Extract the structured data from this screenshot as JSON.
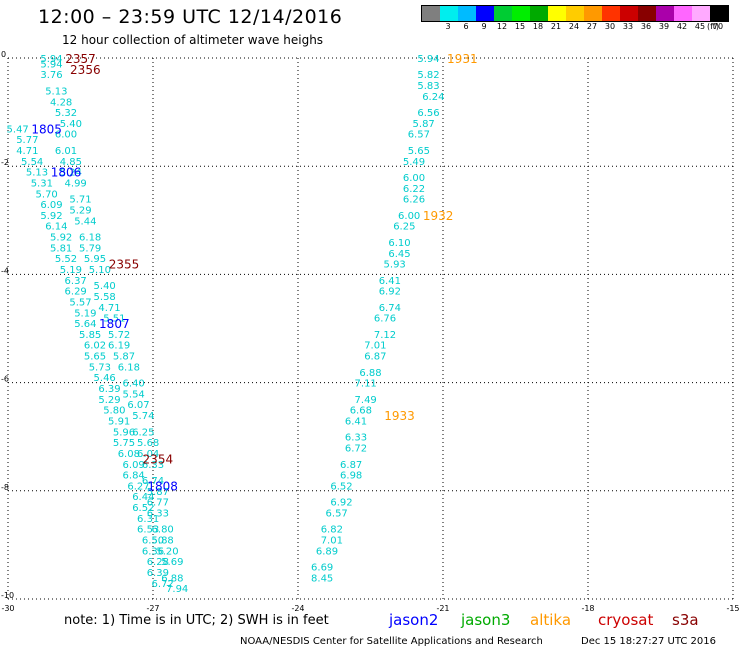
{
  "header": {
    "title": "12:00 – 23:59 UTC 12/14/2016",
    "subtitle": "12 hour collection of altimeter wave heighs"
  },
  "colorbar": {
    "labels": [
      "3",
      "6",
      "9",
      "12",
      "15",
      "18",
      "21",
      "24",
      "27",
      "30",
      "33",
      "36",
      "39",
      "42",
      "45",
      "70"
    ],
    "colors": [
      "#7f7f7f",
      "#00eeee",
      "#00bbff",
      "#0000ff",
      "#00cc33",
      "#00ee00",
      "#00aa00",
      "#ffff00",
      "#ffcc00",
      "#ff9900",
      "#ff3300",
      "#cc0000",
      "#880000",
      "#aa00aa",
      "#ff66ff",
      "#ffaaff",
      "#000000"
    ],
    "unit": "(ft)"
  },
  "footer": {
    "note": "note:  1) Time is in UTC;  2) SWH is in feet",
    "satellites": [
      {
        "name": "jason2",
        "color": "#0000ff"
      },
      {
        "name": "jason3",
        "color": "#00aa00"
      },
      {
        "name": "altika",
        "color": "#ff9900"
      },
      {
        "name": "cryosat",
        "color": "#cc0000"
      },
      {
        "name": "s3a",
        "color": "#880000"
      }
    ],
    "center": "NOAA/NESDIS Center for Satellite Applications and Research",
    "date": "Dec 15 18:27:27 UTC 2016"
  },
  "chart_data": {
    "type": "scatter",
    "xlim": [
      -30,
      -15
    ],
    "ylim": [
      -10,
      0
    ],
    "xticks": [
      "-30",
      "-27",
      "-24",
      "-21",
      "-18",
      "-15"
    ],
    "yticks": [
      "0",
      "-2",
      "-4",
      "-6",
      "-8",
      "-10"
    ],
    "grid": "dotted",
    "swh_color": "#00cccc",
    "tracks": [
      {
        "name": "track-a",
        "points": [
          [
            -29.1,
            -0.1,
            "5.94"
          ],
          [
            -29.1,
            -0.3,
            "3.76"
          ],
          [
            -29.0,
            -0.6,
            "5.13"
          ],
          [
            -28.9,
            -0.8,
            "4.28"
          ],
          [
            -28.8,
            -1.0,
            "5.32"
          ],
          [
            -28.7,
            -1.2,
            "5.40"
          ],
          [
            -28.8,
            -1.4,
            "6.00"
          ],
          [
            -28.8,
            -1.7,
            "6.01"
          ],
          [
            -28.7,
            -1.9,
            "4.85"
          ],
          [
            -28.7,
            -2.1,
            "5.24"
          ],
          [
            -28.6,
            -2.3,
            "4.99"
          ],
          [
            -28.5,
            -2.6,
            "5.71"
          ],
          [
            -28.5,
            -2.8,
            "5.29"
          ],
          [
            -28.4,
            -3.0,
            "5.44"
          ],
          [
            -28.3,
            -3.3,
            "6.18"
          ],
          [
            -28.3,
            -3.5,
            "5.79"
          ],
          [
            -28.2,
            -3.7,
            "5.95"
          ],
          [
            -28.1,
            -3.9,
            "5.10"
          ],
          [
            -28.0,
            -4.2,
            "5.40"
          ],
          [
            -28.0,
            -4.4,
            "5.58"
          ],
          [
            -27.9,
            -4.6,
            "4.71"
          ],
          [
            -27.8,
            -4.8,
            "5.51"
          ],
          [
            -27.7,
            -5.1,
            "5.72"
          ],
          [
            -27.7,
            -5.3,
            "6.19"
          ],
          [
            -27.6,
            -5.5,
            "5.87"
          ],
          [
            -27.5,
            -5.7,
            "6.18"
          ],
          [
            -27.4,
            -6.0,
            "6.40"
          ],
          [
            -27.4,
            -6.2,
            "5.54"
          ],
          [
            -27.3,
            -6.4,
            "6.07"
          ],
          [
            -27.2,
            -6.6,
            "5.74"
          ],
          [
            -27.2,
            -6.9,
            "6.25"
          ],
          [
            -27.1,
            -7.1,
            "5.68"
          ],
          [
            -27.1,
            -7.3,
            "6.04"
          ],
          [
            -27.0,
            -7.5,
            "6.33"
          ],
          [
            -27.0,
            -7.8,
            "6.74"
          ],
          [
            -26.9,
            -8.0,
            "5.87"
          ],
          [
            -26.9,
            -8.2,
            "6.77"
          ],
          [
            -26.9,
            -8.4,
            "6.33"
          ],
          [
            -26.8,
            -8.7,
            "6.80"
          ],
          [
            -26.8,
            -8.9,
            "5.88"
          ],
          [
            -26.7,
            -9.1,
            "5.20"
          ],
          [
            -26.6,
            -9.3,
            "5.69"
          ],
          [
            -26.6,
            -9.6,
            "6.88"
          ],
          [
            -26.5,
            -9.8,
            "7.94"
          ]
        ]
      },
      {
        "name": "track-b",
        "points": [
          [
            -29.1,
            -0.0,
            "5.94"
          ],
          [
            -29.8,
            -1.3,
            "5.47"
          ],
          [
            -29.6,
            -1.5,
            "5.77"
          ],
          [
            -29.6,
            -1.7,
            "4.71"
          ],
          [
            -29.5,
            -1.9,
            "5.54"
          ],
          [
            -29.4,
            -2.1,
            "5.13"
          ],
          [
            -29.3,
            -2.3,
            "5.31"
          ],
          [
            -29.2,
            -2.5,
            "5.70"
          ],
          [
            -29.1,
            -2.7,
            "6.09"
          ],
          [
            -29.1,
            -2.9,
            "5.92"
          ],
          [
            -29.0,
            -3.1,
            "6.14"
          ],
          [
            -28.9,
            -3.3,
            "5.92"
          ],
          [
            -28.9,
            -3.5,
            "5.81"
          ],
          [
            -28.8,
            -3.7,
            "5.52"
          ],
          [
            -28.7,
            -3.9,
            "5.19"
          ],
          [
            -28.6,
            -4.1,
            "6.37"
          ],
          [
            -28.6,
            -4.3,
            "6.29"
          ],
          [
            -28.5,
            -4.5,
            "5.57"
          ],
          [
            -28.4,
            -4.7,
            "5.19"
          ],
          [
            -28.4,
            -4.9,
            "5.64"
          ],
          [
            -28.3,
            -5.1,
            "5.85"
          ],
          [
            -28.2,
            -5.3,
            "6.02"
          ],
          [
            -28.2,
            -5.5,
            "5.65"
          ],
          [
            -28.1,
            -5.7,
            "5.73"
          ],
          [
            -28.0,
            -5.9,
            "5.46"
          ],
          [
            -27.9,
            -6.1,
            "6.39"
          ],
          [
            -27.9,
            -6.3,
            "5.29"
          ],
          [
            -27.8,
            -6.5,
            "5.80"
          ],
          [
            -27.7,
            -6.7,
            "5.91"
          ],
          [
            -27.6,
            -6.9,
            "5.96"
          ],
          [
            -27.6,
            -7.1,
            "5.75"
          ],
          [
            -27.5,
            -7.3,
            "6.08"
          ],
          [
            -27.4,
            -7.5,
            "6.09"
          ],
          [
            -27.4,
            -7.7,
            "6.84"
          ],
          [
            -27.3,
            -7.9,
            "6.27"
          ],
          [
            -27.2,
            -8.1,
            "6.44"
          ],
          [
            -27.2,
            -8.3,
            "6.52"
          ],
          [
            -27.1,
            -8.5,
            "6.31"
          ],
          [
            -27.1,
            -8.7,
            "6.53"
          ],
          [
            -27.0,
            -8.9,
            "6.50"
          ],
          [
            -27.0,
            -9.1,
            "6.36"
          ],
          [
            -26.9,
            -9.3,
            "6.28"
          ],
          [
            -26.9,
            -9.5,
            "6.39"
          ],
          [
            -26.8,
            -9.7,
            "6.72"
          ]
        ]
      },
      {
        "name": "track-c",
        "points": [
          [
            -21.3,
            -0.0,
            "5.94"
          ],
          [
            -21.3,
            -0.3,
            "5.82"
          ],
          [
            -21.3,
            -0.5,
            "5.83"
          ],
          [
            -21.2,
            -0.7,
            "6.24"
          ],
          [
            -21.3,
            -1.0,
            "6.56"
          ],
          [
            -21.4,
            -1.2,
            "5.87"
          ],
          [
            -21.5,
            -1.4,
            "6.57"
          ],
          [
            -21.5,
            -1.7,
            "5.65"
          ],
          [
            -21.6,
            -1.9,
            "5.49"
          ],
          [
            -21.6,
            -2.2,
            "6.00"
          ],
          [
            -21.6,
            -2.4,
            "6.22"
          ],
          [
            -21.6,
            -2.6,
            "6.26"
          ],
          [
            -21.7,
            -2.9,
            "6.00"
          ],
          [
            -21.8,
            -3.1,
            "6.25"
          ],
          [
            -21.9,
            -3.4,
            "6.10"
          ],
          [
            -21.9,
            -3.6,
            "6.45"
          ],
          [
            -22.0,
            -3.8,
            "5.93"
          ],
          [
            -22.1,
            -4.1,
            "6.41"
          ],
          [
            -22.1,
            -4.3,
            "6.92"
          ],
          [
            -22.1,
            -4.6,
            "6.74"
          ],
          [
            -22.2,
            -4.8,
            "6.76"
          ],
          [
            -22.2,
            -5.1,
            "7.12"
          ],
          [
            -22.4,
            -5.3,
            "7.01"
          ],
          [
            -22.4,
            -5.5,
            "6.87"
          ],
          [
            -22.5,
            -5.8,
            "6.88"
          ],
          [
            -22.6,
            -6.0,
            "7.11"
          ],
          [
            -22.6,
            -6.3,
            "7.49"
          ],
          [
            -22.7,
            -6.5,
            "6.68"
          ],
          [
            -22.8,
            -6.7,
            "6.41"
          ],
          [
            -22.8,
            -7.0,
            "6.33"
          ],
          [
            -22.8,
            -7.2,
            "6.72"
          ],
          [
            -22.9,
            -7.5,
            "6.87"
          ],
          [
            -22.9,
            -7.7,
            "6.98"
          ],
          [
            -23.1,
            -7.9,
            "6.52"
          ],
          [
            -23.1,
            -8.2,
            "6.92"
          ],
          [
            -23.2,
            -8.4,
            "6.57"
          ],
          [
            -23.3,
            -8.7,
            "6.82"
          ],
          [
            -23.3,
            -8.9,
            "7.01"
          ],
          [
            -23.4,
            -9.1,
            "6.89"
          ],
          [
            -23.5,
            -9.4,
            "6.69"
          ],
          [
            -23.5,
            -9.6,
            "8.45"
          ]
        ]
      }
    ],
    "pass_labels": [
      {
        "text": "2357",
        "x": -28.5,
        "y": -0.0,
        "color": "#880000"
      },
      {
        "text": "2356",
        "x": -28.4,
        "y": -0.2,
        "color": "#880000"
      },
      {
        "text": "1805",
        "x": -29.2,
        "y": -1.3,
        "color": "#0000ff"
      },
      {
        "text": "1806",
        "x": -28.8,
        "y": -2.1,
        "color": "#0000ff"
      },
      {
        "text": "2355",
        "x": -27.6,
        "y": -3.8,
        "color": "#880000"
      },
      {
        "text": "1807",
        "x": -27.8,
        "y": -4.9,
        "color": "#0000ff"
      },
      {
        "text": "2354",
        "x": -26.9,
        "y": -7.4,
        "color": "#880000"
      },
      {
        "text": "1808",
        "x": -26.8,
        "y": -7.9,
        "color": "#0000ff"
      },
      {
        "text": "1931",
        "x": -20.6,
        "y": -0.0,
        "color": "#ff9900"
      },
      {
        "text": "1932",
        "x": -21.1,
        "y": -2.9,
        "color": "#ff9900"
      },
      {
        "text": "1933",
        "x": -21.9,
        "y": -6.6,
        "color": "#ff9900"
      }
    ]
  }
}
